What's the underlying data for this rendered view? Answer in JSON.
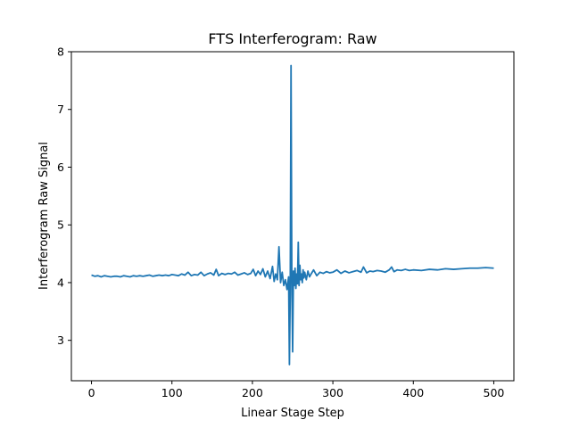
{
  "chart_data": {
    "type": "line",
    "title": "FTS Interferogram: Raw",
    "xlabel": "Linear Stage Step",
    "ylabel": "Interferogram Raw Signal",
    "xlim": [
      -25,
      525
    ],
    "ylim": [
      2.3,
      8.0
    ],
    "xticks": [
      0,
      100,
      200,
      300,
      400,
      500
    ],
    "yticks": [
      3,
      4,
      5,
      6,
      7,
      8
    ],
    "grid": false,
    "legend": "none",
    "series": [
      {
        "color": "#1f77b4",
        "x": [
          0,
          4,
          8,
          12,
          16,
          20,
          24,
          28,
          32,
          36,
          40,
          44,
          48,
          52,
          56,
          60,
          64,
          68,
          72,
          76,
          80,
          84,
          88,
          92,
          96,
          100,
          104,
          108,
          112,
          116,
          120,
          124,
          128,
          132,
          136,
          140,
          144,
          148,
          152,
          155,
          158,
          162,
          166,
          170,
          174,
          178,
          182,
          186,
          190,
          194,
          198,
          201,
          204,
          207,
          210,
          213,
          216,
          219,
          222,
          225,
          227,
          229,
          231,
          233,
          235,
          237,
          239,
          241,
          243,
          245,
          246,
          247,
          248,
          249,
          250,
          251,
          252,
          253,
          254,
          255,
          256,
          257,
          258,
          259,
          260,
          261,
          262,
          263,
          264,
          265,
          267,
          269,
          271,
          273,
          276,
          280,
          284,
          288,
          292,
          296,
          300,
          305,
          310,
          315,
          320,
          325,
          330,
          335,
          338,
          342,
          346,
          350,
          355,
          360,
          365,
          370,
          373,
          376,
          380,
          385,
          390,
          395,
          400,
          410,
          420,
          430,
          440,
          450,
          460,
          470,
          480,
          490,
          500
        ],
        "y": [
          4.13,
          4.11,
          4.12,
          4.1,
          4.12,
          4.11,
          4.1,
          4.11,
          4.11,
          4.1,
          4.12,
          4.11,
          4.1,
          4.12,
          4.11,
          4.12,
          4.11,
          4.12,
          4.13,
          4.11,
          4.12,
          4.13,
          4.12,
          4.13,
          4.12,
          4.14,
          4.13,
          4.12,
          4.15,
          4.13,
          4.18,
          4.12,
          4.14,
          4.13,
          4.18,
          4.12,
          4.15,
          4.17,
          4.13,
          4.23,
          4.12,
          4.16,
          4.14,
          4.16,
          4.15,
          4.18,
          4.13,
          4.15,
          4.17,
          4.14,
          4.16,
          4.23,
          4.12,
          4.2,
          4.14,
          4.24,
          4.1,
          4.2,
          4.07,
          4.28,
          4.02,
          4.15,
          4.05,
          4.62,
          4.0,
          4.18,
          3.95,
          4.05,
          3.88,
          4.1,
          2.58,
          3.8,
          7.76,
          4.05,
          2.8,
          4.2,
          3.95,
          4.25,
          3.9,
          4.15,
          3.98,
          4.7,
          3.95,
          4.3,
          4.05,
          4.15,
          4.0,
          4.22,
          4.08,
          4.18,
          4.05,
          4.2,
          4.1,
          4.15,
          4.22,
          4.12,
          4.18,
          4.16,
          4.19,
          4.17,
          4.18,
          4.22,
          4.16,
          4.2,
          4.17,
          4.19,
          4.21,
          4.18,
          4.27,
          4.17,
          4.2,
          4.19,
          4.21,
          4.2,
          4.18,
          4.22,
          4.27,
          4.19,
          4.22,
          4.21,
          4.23,
          4.21,
          4.22,
          4.21,
          4.23,
          4.22,
          4.24,
          4.23,
          4.24,
          4.25,
          4.25,
          4.26,
          4.25
        ]
      }
    ]
  }
}
